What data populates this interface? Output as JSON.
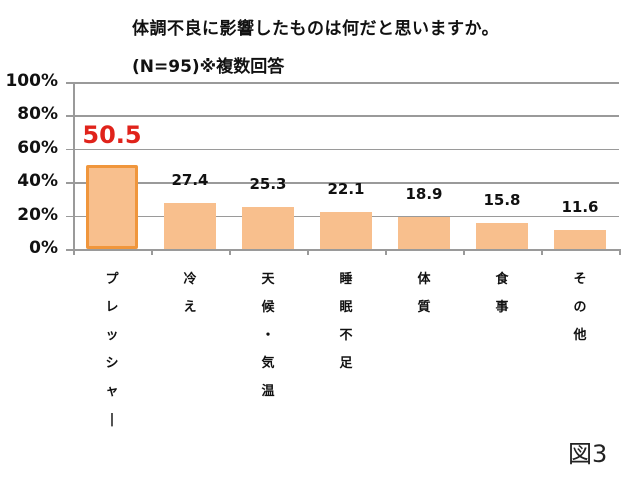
{
  "header": {
    "title": "体調不良に影響したものは何だと思いますか。",
    "subtitle": "(N=95)※複数回答"
  },
  "figure_label": "図3",
  "colors": {
    "bar_fill": "#f8bf8d",
    "highlight_border": "#f0963c",
    "highlight_label": "#e0231b",
    "grid": "#9a9a9a"
  },
  "chart_data": {
    "type": "bar",
    "title": "体調不良に影響したものは何だと思いますか。(N=95)※複数回答",
    "xlabel": "",
    "ylabel": "",
    "ylim": [
      0,
      100
    ],
    "yticks": [
      "0%",
      "20%",
      "40%",
      "60%",
      "80%",
      "100%"
    ],
    "grid": true,
    "legend": null,
    "categories": [
      "プレッシャー",
      "冷え",
      "天候・気温",
      "睡眠不足",
      "体質",
      "食事",
      "その他"
    ],
    "values": [
      50.5,
      27.4,
      25.3,
      22.1,
      18.9,
      15.8,
      11.6
    ],
    "value_labels": [
      "50.5",
      "27.4",
      "25.3",
      "22.1",
      "18.9",
      "15.8",
      "11.6"
    ],
    "highlighted_index": 0,
    "annotations": [
      "図3"
    ]
  }
}
